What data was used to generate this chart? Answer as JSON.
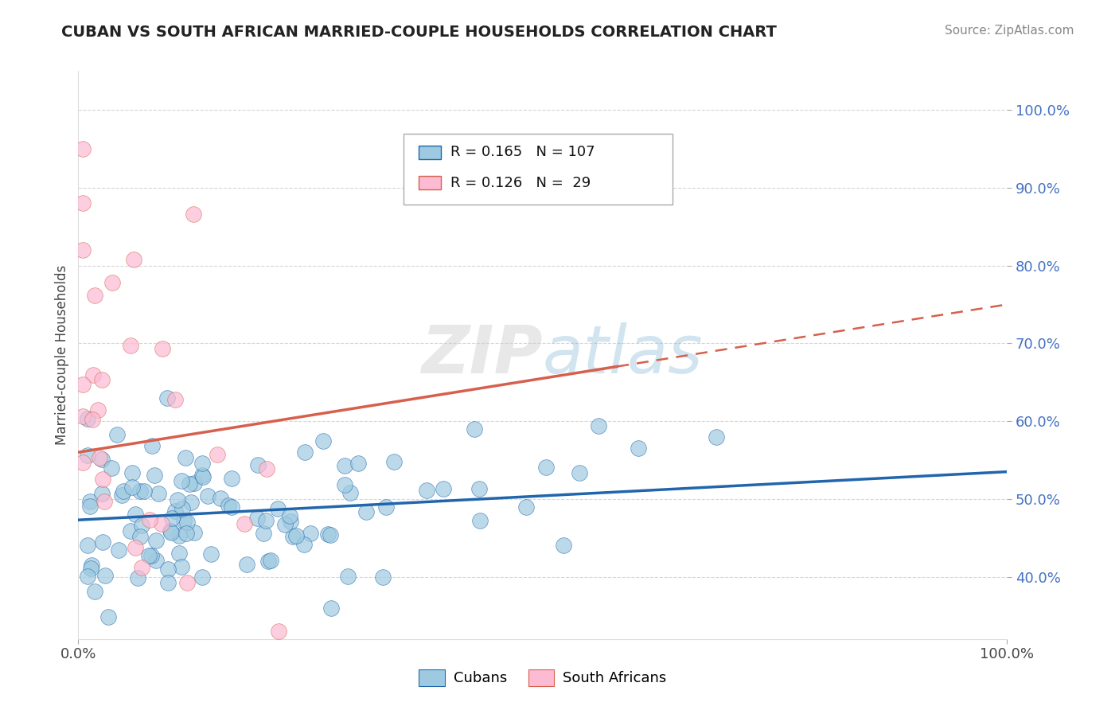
{
  "title": "CUBAN VS SOUTH AFRICAN MARRIED-COUPLE HOUSEHOLDS CORRELATION CHART",
  "source": "Source: ZipAtlas.com",
  "ylabel": "Married-couple Households",
  "legend_cubans": "Cubans",
  "legend_south_africans": "South Africans",
  "r_cubans": 0.165,
  "n_cubans": 107,
  "r_south_africans": 0.126,
  "n_south_africans": 29,
  "xlim": [
    0.0,
    1.0
  ],
  "ylim": [
    0.32,
    1.05
  ],
  "yticks": [
    0.4,
    0.5,
    0.6,
    0.7,
    0.8,
    0.9,
    1.0
  ],
  "ytick_labels": [
    "40.0%",
    "50.0%",
    "60.0%",
    "70.0%",
    "80.0%",
    "90.0%",
    "100.0%"
  ],
  "color_cubans": "#9ECAE1",
  "color_south_africans": "#FCBAD3",
  "line_color_cubans": "#2166AC",
  "line_color_south_africans": "#D6604D",
  "background_color": "#FFFFFF",
  "watermark": "ZIPatlas",
  "title_color": "#222222",
  "source_color": "#888888",
  "ylabel_color": "#444444",
  "ytick_color": "#4472C4",
  "xtick_color": "#444444",
  "grid_color": "#CCCCCC"
}
